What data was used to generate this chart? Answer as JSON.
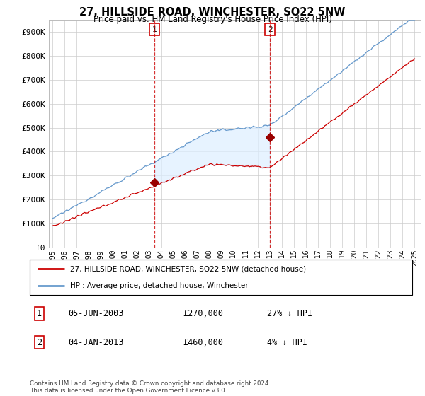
{
  "title": "27, HILLSIDE ROAD, WINCHESTER, SO22 5NW",
  "subtitle": "Price paid vs. HM Land Registry's House Price Index (HPI)",
  "ylabel_ticks": [
    "£0",
    "£100K",
    "£200K",
    "£300K",
    "£400K",
    "£500K",
    "£600K",
    "£700K",
    "£800K",
    "£900K"
  ],
  "ytick_values": [
    0,
    100000,
    200000,
    300000,
    400000,
    500000,
    600000,
    700000,
    800000,
    900000
  ],
  "ylim": [
    0,
    950000
  ],
  "x_start_year": 1995,
  "x_end_year": 2025,
  "sale1_date": 2003.43,
  "sale1_price": 270000,
  "sale1_label": "1",
  "sale2_date": 2013.01,
  "sale2_price": 460000,
  "sale2_label": "2",
  "hpi_color": "#6699cc",
  "hpi_fill_color": "#ddeeff",
  "price_color": "#cc0000",
  "marker_color": "#990000",
  "vline_color": "#cc0000",
  "grid_color": "#cccccc",
  "background_color": "#ffffff",
  "legend_entry1": "27, HILLSIDE ROAD, WINCHESTER, SO22 5NW (detached house)",
  "legend_entry2": "HPI: Average price, detached house, Winchester",
  "table_row1": [
    "1",
    "05-JUN-2003",
    "£270,000",
    "27% ↓ HPI"
  ],
  "table_row2": [
    "2",
    "04-JAN-2013",
    "£460,000",
    "4% ↓ HPI"
  ],
  "footer": "Contains HM Land Registry data © Crown copyright and database right 2024.\nThis data is licensed under the Open Government Licence v3.0."
}
